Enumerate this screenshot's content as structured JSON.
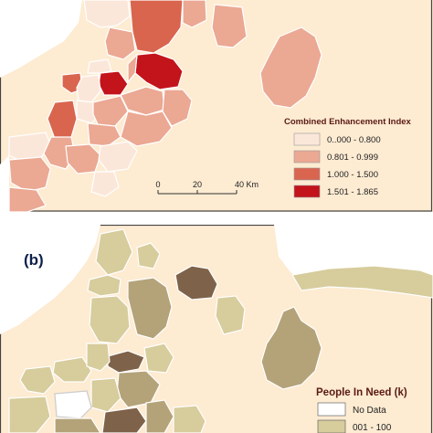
{
  "map_a": {
    "legend": {
      "title": "Combined Enhancement Index",
      "items": [
        {
          "label": "0..000 - 0.800",
          "color": "#fbe7d9"
        },
        {
          "label": "0.801 - 0.999",
          "color": "#eba893"
        },
        {
          "label": "1.000 - 1.500",
          "color": "#d9654f"
        },
        {
          "label": "1.501 - 1.865",
          "color": "#c3131b"
        }
      ]
    },
    "scale_bar": {
      "ticks": [
        "0",
        "20",
        "40 Km"
      ]
    },
    "background_color": "#fdebd2"
  },
  "map_b": {
    "panel_label": "(b)",
    "legend": {
      "title": "People In Need (k)",
      "items": [
        {
          "label": "No Data",
          "color": "#ffffff"
        },
        {
          "label": "001 - 100",
          "color": "#d7cc9c"
        }
      ]
    },
    "background_color": "#fdebd2"
  },
  "colors": {
    "region_light_tan": "#d7cc9c",
    "region_mid_tan": "#b4a379",
    "region_dark_brown": "#7e6249",
    "region_outline": "#ffffff",
    "panel_border": "#444444",
    "title_red": "#5a1a14",
    "panel_label_blue": "#0d1f4d"
  }
}
